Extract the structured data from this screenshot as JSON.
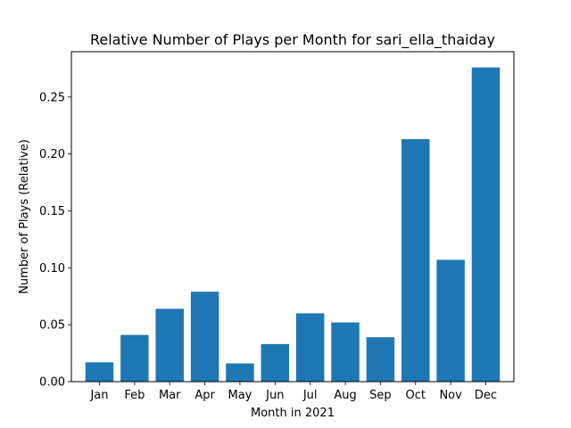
{
  "chart_data": {
    "type": "bar",
    "title": "Relative Number of Plays per Month for sari_ella_thaiday",
    "xlabel": "Month in 2021",
    "ylabel": "Number of Plays (Relative)",
    "categories": [
      "Jan",
      "Feb",
      "Mar",
      "Apr",
      "May",
      "Jun",
      "Jul",
      "Aug",
      "Sep",
      "Oct",
      "Nov",
      "Dec"
    ],
    "values": [
      0.017,
      0.041,
      0.064,
      0.079,
      0.016,
      0.033,
      0.06,
      0.052,
      0.039,
      0.213,
      0.107,
      0.276
    ],
    "ylim": [
      0,
      0.2898
    ],
    "yticks": [
      "0.00",
      "0.05",
      "0.10",
      "0.15",
      "0.20",
      "0.25"
    ],
    "grid": false,
    "legend": "none",
    "bar_color": "#1f77b4"
  }
}
